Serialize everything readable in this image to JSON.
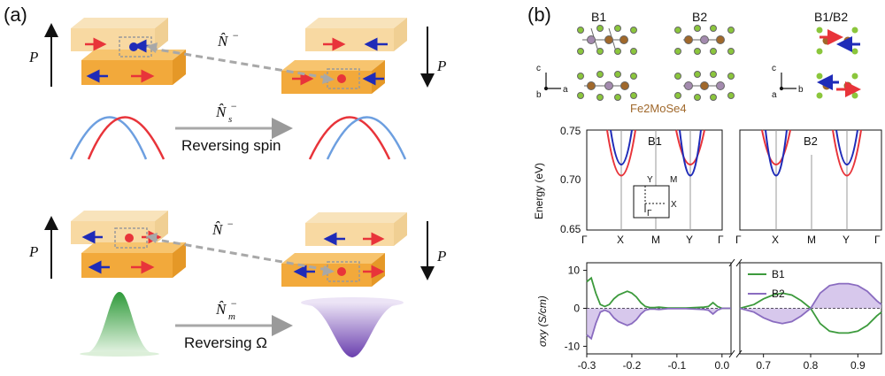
{
  "panel_a": {
    "label": "(a)",
    "polarization_symbol": "P",
    "operator_N": "N̂",
    "operator_N_sup": "−",
    "operator_Ns_sub": "s",
    "operator_Nm_sub": "m",
    "caption_reversing_spin": "Reversing spin",
    "caption_reversing_omega": "Reversing Ω"
  },
  "panel_b": {
    "label": "(b)",
    "structures": {
      "b1": "B1",
      "b2": "B2",
      "b1b2": "B1/B2",
      "formula": "Fe2MoSe4",
      "axes_left": {
        "c": "c",
        "b": "b",
        "a": "a"
      },
      "axes_right": {
        "c": "c",
        "a": "a",
        "b": "b"
      }
    },
    "band_left": {
      "label": "B1",
      "ylabel": "Energy (eV)",
      "yticks": [
        "0.75",
        "0.70",
        "0.65"
      ],
      "xticks": [
        "Γ",
        "X",
        "M",
        "Y",
        "Γ"
      ],
      "inset": {
        "Y": "Y",
        "M": "M",
        "X": "X",
        "G": "Γ"
      }
    },
    "band_right": {
      "label": "B2",
      "xticks": [
        "Γ",
        "X",
        "M",
        "Y",
        "Γ"
      ]
    }
  },
  "colors": {
    "red": "#e8343a",
    "blue": "#1f2bb8",
    "light_blue": "#6d9fe0",
    "green": "#3c9a3c",
    "purple": "#8a6cc0",
    "orange": "#f2a93b",
    "light_orange": "#f8d9a2",
    "fe_atom": "#a0682b",
    "mo_atom": "#a38aae",
    "se_atom": "#8bc63c"
  },
  "chart_data": {
    "type": "line",
    "title": "",
    "xlabel": "",
    "ylabel": "σxy (S/cm)",
    "ylim": [
      -12,
      12
    ],
    "yticks": [
      "10",
      "0",
      "-10"
    ],
    "xticks_left": [
      "-0.3",
      "-0.2",
      "-0.1",
      "0.0"
    ],
    "xticks_right": [
      "0.7",
      "0.8",
      "0.9"
    ],
    "xlim_left": [
      -0.3,
      0.02
    ],
    "xlim_right": [
      0.65,
      0.95
    ],
    "legend_position": "top-right",
    "series": [
      {
        "name": "B1",
        "color": "#3c9a3c",
        "x": [
          -0.3,
          -0.29,
          -0.28,
          -0.27,
          -0.26,
          -0.25,
          -0.24,
          -0.23,
          -0.22,
          -0.21,
          -0.2,
          -0.19,
          -0.18,
          -0.17,
          -0.16,
          -0.15,
          -0.14,
          -0.13,
          -0.12,
          -0.1,
          -0.08,
          -0.06,
          -0.04,
          -0.03,
          -0.02,
          -0.01,
          0.0,
          0.01,
          0.02
        ],
        "y": [
          7,
          8,
          4,
          1,
          0.5,
          1,
          2.5,
          3.5,
          4,
          4.5,
          4,
          3,
          1.5,
          0.5,
          0.2,
          0.2,
          0.3,
          0.2,
          0.1,
          0.1,
          0.1,
          0.2,
          0.3,
          0.5,
          1.5,
          0.5,
          0,
          0,
          0
        ]
      },
      {
        "name": "B2",
        "color": "#8a6cc0",
        "x": [
          -0.3,
          -0.29,
          -0.28,
          -0.27,
          -0.26,
          -0.25,
          -0.24,
          -0.23,
          -0.22,
          -0.21,
          -0.2,
          -0.19,
          -0.18,
          -0.17,
          -0.16,
          -0.15,
          -0.14,
          -0.13,
          -0.12,
          -0.1,
          -0.08,
          -0.06,
          -0.04,
          -0.03,
          -0.02,
          -0.01,
          0.0,
          0.01,
          0.02
        ],
        "y": [
          -7,
          -8,
          -4,
          -1,
          -0.5,
          -1,
          -2.5,
          -3.5,
          -4,
          -4.5,
          -4,
          -3,
          -1.5,
          -0.5,
          -0.2,
          -0.2,
          -0.3,
          -0.2,
          -0.1,
          -0.1,
          -0.1,
          -0.2,
          -0.3,
          -0.5,
          -1.5,
          -0.5,
          0,
          0,
          0
        ]
      },
      {
        "name": "B1",
        "color": "#3c9a3c",
        "x": [
          0.65,
          0.68,
          0.7,
          0.72,
          0.74,
          0.76,
          0.78,
          0.8,
          0.82,
          0.84,
          0.86,
          0.88,
          0.9,
          0.92,
          0.94,
          0.95
        ],
        "y": [
          0,
          1,
          2.5,
          3.5,
          4,
          3.5,
          2,
          0,
          -4,
          -6,
          -6.5,
          -6.5,
          -6,
          -4.5,
          -2,
          -1
        ]
      },
      {
        "name": "B2",
        "color": "#8a6cc0",
        "x": [
          0.65,
          0.68,
          0.7,
          0.72,
          0.74,
          0.76,
          0.78,
          0.8,
          0.82,
          0.84,
          0.86,
          0.88,
          0.9,
          0.92,
          0.94,
          0.95
        ],
        "y": [
          0,
          -1,
          -2.5,
          -3.5,
          -4,
          -3.5,
          -2,
          0,
          4,
          6,
          6.5,
          6.5,
          6,
          4.5,
          2,
          1
        ]
      }
    ]
  }
}
